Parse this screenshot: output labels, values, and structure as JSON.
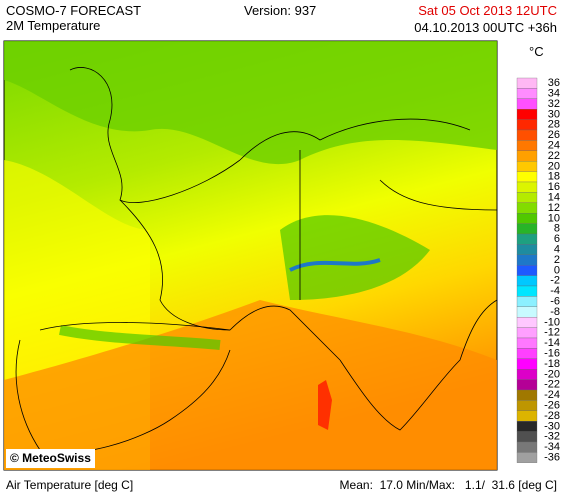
{
  "header": {
    "title": "COSMO-7 FORECAST",
    "subtitle": "2M Temperature",
    "version": "Version: 937",
    "valid_time": "Sat 05 Oct 2013 12UTC",
    "run_time": "04.10.2013 00UTC +36h"
  },
  "map": {
    "credit": "© MeteoSwiss"
  },
  "legend": {
    "unit": "°C",
    "levels": [
      {
        "label": "36",
        "color": "#ffb8f4"
      },
      {
        "label": "34",
        "color": "#ff8cff"
      },
      {
        "label": "32",
        "color": "#ff50ff"
      },
      {
        "label": "30",
        "color": "#ff0000"
      },
      {
        "label": "28",
        "color": "#ff2800"
      },
      {
        "label": "26",
        "color": "#ff5000"
      },
      {
        "label": "24",
        "color": "#ff7800"
      },
      {
        "label": "22",
        "color": "#ffa000"
      },
      {
        "label": "20",
        "color": "#ffc800"
      },
      {
        "label": "18",
        "color": "#ffff00"
      },
      {
        "label": "16",
        "color": "#dcf500"
      },
      {
        "label": "14",
        "color": "#b4eb00"
      },
      {
        "label": "12",
        "color": "#82dc00"
      },
      {
        "label": "10",
        "color": "#50c800"
      },
      {
        "label": "8",
        "color": "#28b428"
      },
      {
        "label": "6",
        "color": "#1ea080"
      },
      {
        "label": "4",
        "color": "#1e8ca0"
      },
      {
        "label": "2",
        "color": "#1e78c8"
      },
      {
        "label": "0",
        "color": "#1e5aff"
      },
      {
        "label": "-2",
        "color": "#00c8ff"
      },
      {
        "label": "-4",
        "color": "#00e6ff"
      },
      {
        "label": "-6",
        "color": "#8cf0ff"
      },
      {
        "label": "-8",
        "color": "#c8faff"
      },
      {
        "label": "-10",
        "color": "#ffc8ff"
      },
      {
        "label": "-12",
        "color": "#ffa0ff"
      },
      {
        "label": "-14",
        "color": "#ff78ff"
      },
      {
        "label": "-16",
        "color": "#ff40ff"
      },
      {
        "label": "-18",
        "color": "#ff00ff"
      },
      {
        "label": "-20",
        "color": "#dc00c8"
      },
      {
        "label": "-22",
        "color": "#b40096"
      },
      {
        "label": "-24",
        "color": "#a07800"
      },
      {
        "label": "-26",
        "color": "#be9600"
      },
      {
        "label": "-28",
        "color": "#dcb400"
      },
      {
        "label": "-30",
        "color": "#282828"
      },
      {
        "label": "-32",
        "color": "#505050"
      },
      {
        "label": "-34",
        "color": "#787878"
      },
      {
        "label": "-36",
        "color": "#a0a0a0"
      }
    ]
  },
  "footer": {
    "variable": "Air Temperature [deg C]",
    "stats": "Mean:  17.0 Min/Max:   1.1/  31.6 [deg C]"
  }
}
